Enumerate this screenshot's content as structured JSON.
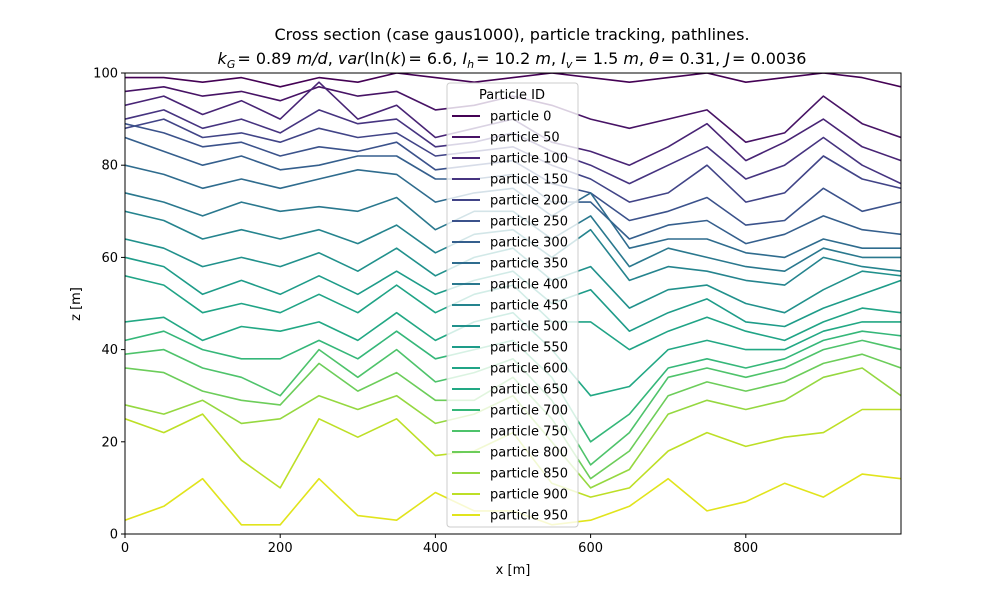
{
  "chart_data": {
    "type": "line",
    "title_line1": "Cross section (case gaus1000), particle tracking, pathlines.",
    "title_line2": {
      "kG_value": "= 0.89",
      "kG_unit": "m/d",
      "var_value": "= 6.6",
      "Ih_value": "= 10.2",
      "Ih_unit": "m",
      "Iv_value": "= 1.5",
      "Iv_unit": "m",
      "theta_value": "= 0.31",
      "J_value": "= 0.0036"
    },
    "xlabel": "x [m]",
    "ylabel": "z [m]",
    "xlim": [
      0,
      1000
    ],
    "ylim": [
      0,
      100
    ],
    "x_ticks": [
      "0",
      "200",
      "400",
      "600",
      "800"
    ],
    "y_ticks": [
      "0",
      "20",
      "40",
      "60",
      "80",
      "100"
    ],
    "grid": false,
    "legend": {
      "title": "Particle ID",
      "placement": "upper-center"
    },
    "colormap": "viridis",
    "x": [
      0,
      50,
      100,
      150,
      200,
      250,
      300,
      350,
      400,
      450,
      500,
      550,
      600,
      650,
      700,
      750,
      800,
      850,
      900,
      950,
      1000
    ],
    "series": [
      {
        "name": "particle 0",
        "color": "#440154",
        "values": [
          99,
          99,
          98,
          99,
          97,
          99,
          98,
          100,
          99,
          98,
          99,
          100,
          99,
          98,
          99,
          100,
          98,
          99,
          100,
          99,
          97
        ]
      },
      {
        "name": "particle 50",
        "color": "#471365",
        "values": [
          96,
          97,
          95,
          96,
          94,
          97,
          95,
          96,
          92,
          93,
          95,
          93,
          90,
          88,
          90,
          92,
          85,
          87,
          95,
          89,
          86
        ]
      },
      {
        "name": "particle 100",
        "color": "#482475",
        "values": [
          93,
          95,
          91,
          94,
          90,
          98,
          90,
          93,
          86,
          88,
          90,
          85,
          83,
          80,
          84,
          89,
          81,
          85,
          90,
          84,
          81
        ]
      },
      {
        "name": "particle 150",
        "color": "#463480",
        "values": [
          90,
          92,
          88,
          90,
          87,
          92,
          89,
          90,
          84,
          85,
          87,
          83,
          80,
          76,
          80,
          84,
          77,
          80,
          86,
          80,
          76
        ]
      },
      {
        "name": "particle 200",
        "color": "#414487",
        "values": [
          88,
          90,
          86,
          87,
          85,
          88,
          86,
          87,
          82,
          83,
          84,
          80,
          77,
          72,
          74,
          80,
          72,
          74,
          82,
          77,
          75
        ]
      },
      {
        "name": "particle 250",
        "color": "#3b528b",
        "values": [
          89,
          87,
          84,
          85,
          82,
          84,
          83,
          85,
          79,
          80,
          81,
          76,
          74,
          68,
          70,
          73,
          67,
          68,
          75,
          70,
          72
        ]
      },
      {
        "name": "particle 300",
        "color": "#355f8d",
        "values": [
          86,
          83,
          80,
          82,
          79,
          80,
          82,
          82,
          77,
          77,
          78,
          72,
          72,
          64,
          67,
          68,
          63,
          65,
          69,
          66,
          65
        ]
      },
      {
        "name": "particle 350",
        "color": "#2f6c8e",
        "values": [
          80,
          78,
          75,
          77,
          75,
          77,
          79,
          78,
          72,
          74,
          75,
          69,
          74,
          62,
          64,
          64,
          61,
          60,
          64,
          62,
          62
        ]
      },
      {
        "name": "particle 400",
        "color": "#2a788e",
        "values": [
          74,
          72,
          69,
          72,
          70,
          71,
          70,
          73,
          66,
          70,
          70,
          64,
          69,
          58,
          62,
          60,
          58,
          57,
          62,
          60,
          60
        ]
      },
      {
        "name": "particle 450",
        "color": "#25848e",
        "values": [
          70,
          68,
          64,
          66,
          64,
          66,
          63,
          67,
          61,
          65,
          66,
          60,
          66,
          55,
          58,
          57,
          55,
          54,
          60,
          58,
          57
        ]
      },
      {
        "name": "particle 500",
        "color": "#21918c",
        "values": [
          64,
          62,
          58,
          60,
          58,
          61,
          57,
          62,
          56,
          60,
          62,
          55,
          58,
          49,
          53,
          54,
          50,
          48,
          53,
          57,
          56
        ]
      },
      {
        "name": "particle 550",
        "color": "#1e9c89",
        "values": [
          60,
          58,
          52,
          55,
          52,
          56,
          52,
          57,
          52,
          55,
          57,
          50,
          53,
          44,
          48,
          51,
          46,
          45,
          49,
          52,
          55
        ]
      },
      {
        "name": "particle 600",
        "color": "#20a486",
        "values": [
          56,
          54,
          48,
          50,
          48,
          52,
          48,
          54,
          48,
          52,
          54,
          46,
          46,
          40,
          44,
          47,
          44,
          42,
          46,
          49,
          48
        ]
      },
      {
        "name": "particle 650",
        "color": "#22a884",
        "values": [
          46,
          47,
          42,
          45,
          44,
          46,
          42,
          48,
          42,
          46,
          48,
          40,
          30,
          32,
          40,
          42,
          40,
          40,
          44,
          46,
          46
        ]
      },
      {
        "name": "particle 700",
        "color": "#35b779",
        "values": [
          42,
          44,
          40,
          38,
          38,
          42,
          38,
          44,
          38,
          40,
          42,
          34,
          20,
          26,
          36,
          38,
          36,
          38,
          42,
          44,
          43
        ]
      },
      {
        "name": "particle 750",
        "color": "#4ec36b",
        "values": [
          39,
          40,
          36,
          34,
          30,
          40,
          34,
          40,
          33,
          35,
          38,
          29,
          15,
          22,
          34,
          36,
          34,
          36,
          40,
          42,
          40
        ]
      },
      {
        "name": "particle 800",
        "color": "#6ccd5a",
        "values": [
          36,
          35,
          31,
          29,
          28,
          37,
          31,
          35,
          29,
          29,
          34,
          25,
          12,
          18,
          30,
          33,
          31,
          33,
          37,
          39,
          36
        ]
      },
      {
        "name": "particle 850",
        "color": "#95d840",
        "values": [
          28,
          26,
          29,
          24,
          25,
          30,
          27,
          30,
          24,
          26,
          30,
          20,
          10,
          14,
          26,
          29,
          27,
          29,
          34,
          36,
          30
        ]
      },
      {
        "name": "particle 900",
        "color": "#bddf26",
        "values": [
          25,
          22,
          26,
          16,
          10,
          25,
          21,
          25,
          17,
          18,
          22,
          11,
          8,
          10,
          18,
          22,
          19,
          21,
          22,
          27,
          27
        ]
      },
      {
        "name": "particle 950",
        "color": "#e1e41c",
        "values": [
          3,
          6,
          12,
          2,
          2,
          12,
          4,
          3,
          9,
          5,
          5,
          2,
          3,
          6,
          12,
          5,
          7,
          11,
          8,
          13,
          12
        ]
      }
    ]
  }
}
